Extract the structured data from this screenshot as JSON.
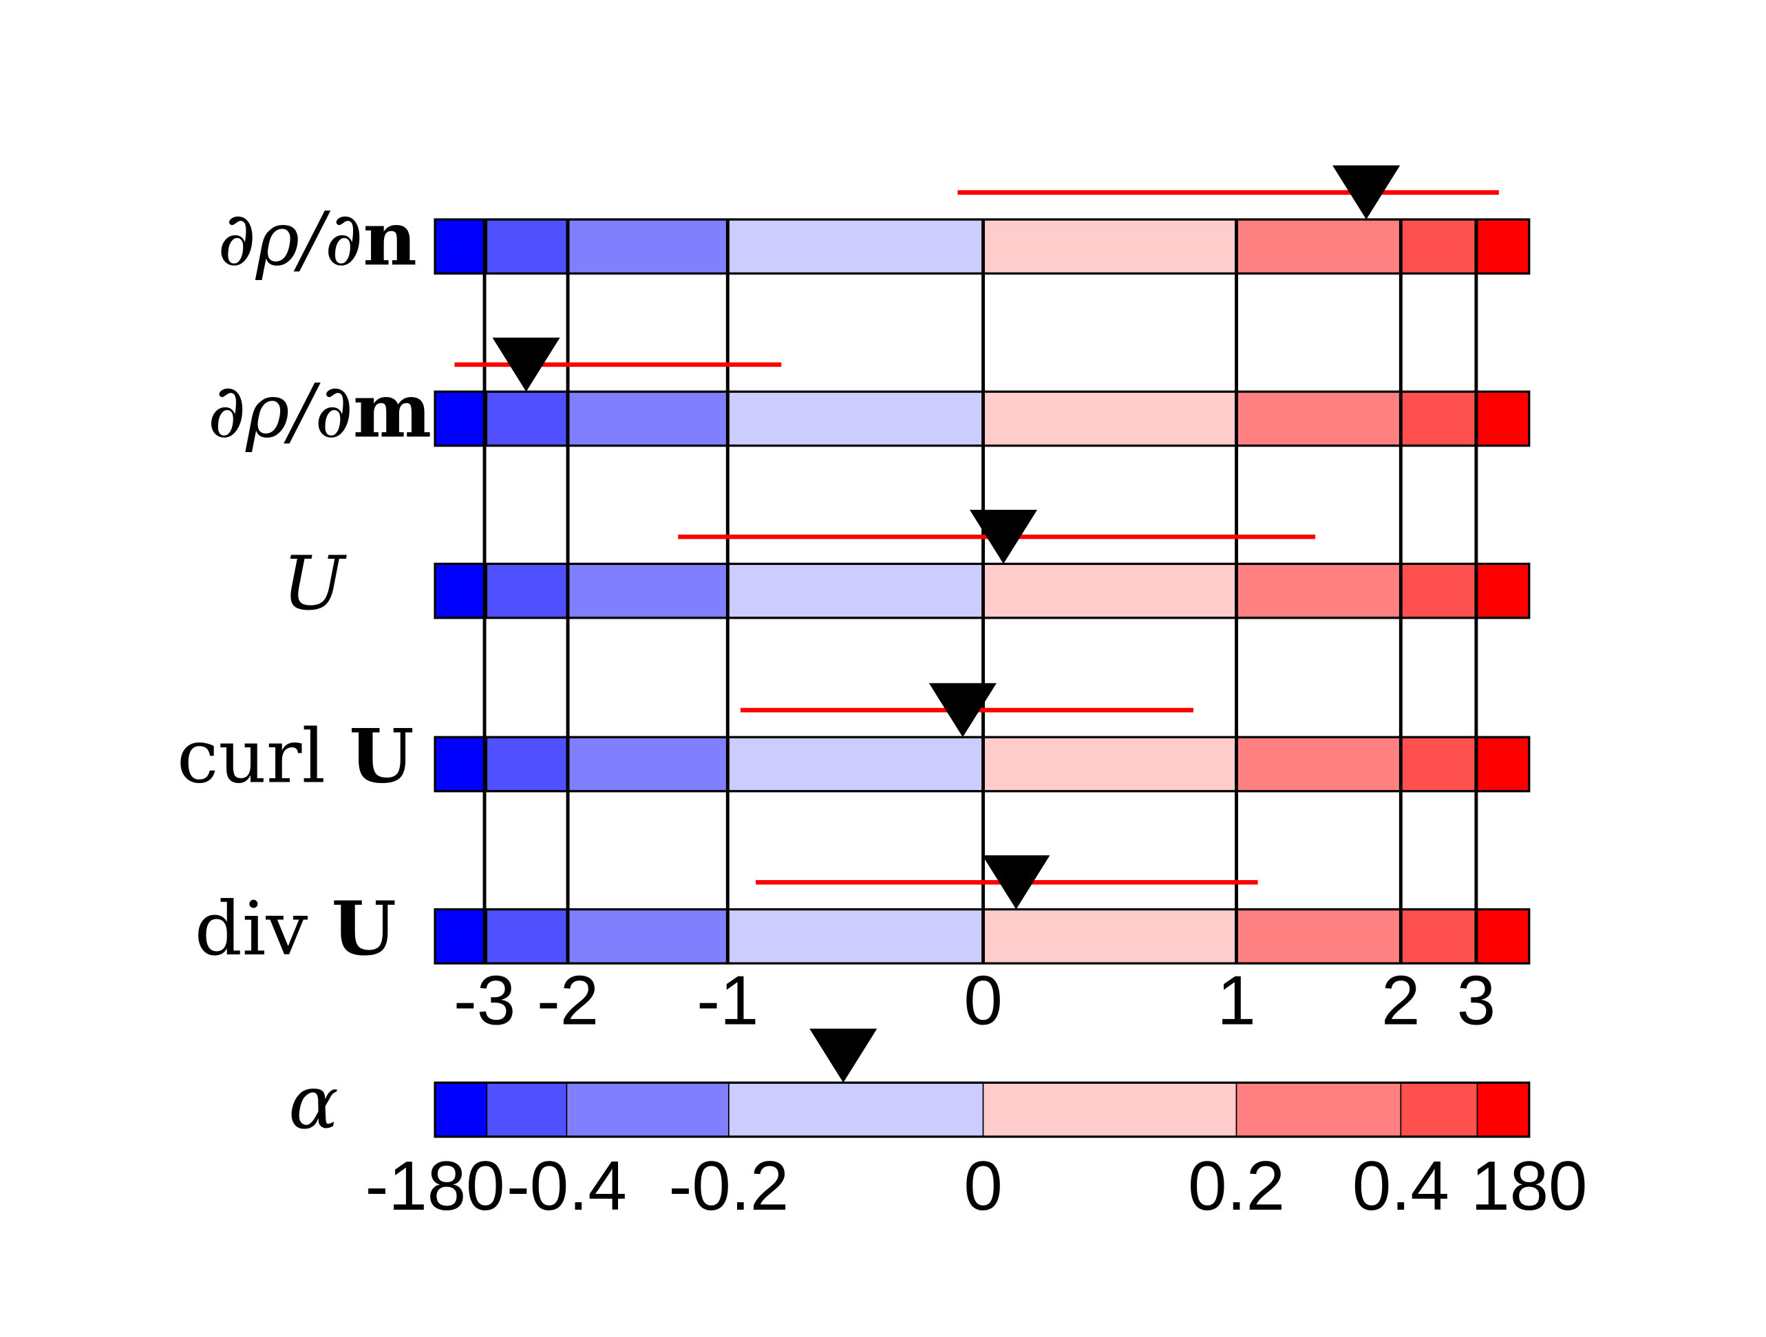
{
  "chart_data": {
    "type": "interval-markers-on-colorbars",
    "rows": [
      {
        "label_prefix": "∂ρ/∂",
        "label_bold": "n",
        "italic_prefix": true,
        "marker": 1.79,
        "range": [
          -0.1,
          3.3
        ]
      },
      {
        "label_prefix": "∂ρ/∂",
        "label_bold": "m",
        "italic_prefix": true,
        "marker": -2.5,
        "range": [
          -3.36,
          -0.79
        ]
      },
      {
        "label_prefix": "U",
        "label_bold": "",
        "italic_prefix": true,
        "marker": 0.08,
        "range": [
          -1.31,
          1.48
        ]
      },
      {
        "label_prefix": "curl ",
        "label_bold": "U",
        "italic_prefix": false,
        "marker": -0.08,
        "range": [
          -0.95,
          0.83
        ]
      },
      {
        "label_prefix": "div ",
        "label_bold": "U",
        "italic_prefix": false,
        "marker": 0.13,
        "range": [
          -0.89,
          1.13
        ]
      }
    ],
    "x_ticks": [
      -3,
      -2,
      -1,
      0,
      1,
      2,
      3
    ],
    "x_tick_labels": [
      "-3",
      "-2",
      "-1",
      "0",
      "1",
      "2",
      "3"
    ],
    "alpha": {
      "label": "α",
      "marker": -0.11,
      "ticks": [
        -180,
        -0.4,
        -0.2,
        0,
        0.2,
        0.4,
        180
      ],
      "tick_labels": [
        "-180",
        "-0.4",
        "-0.2",
        "0",
        "0.2",
        "0.4",
        "180"
      ]
    },
    "colorbar_colors": [
      "#0000ff",
      "#5050ff",
      "#8080ff",
      "#ccccff",
      "#ffcccc",
      "#ff8080",
      "#ff5050",
      "#ff0000"
    ],
    "range_color": "#ff0000",
    "marker_color": "#000000",
    "grid": "vertical lines at x ticks"
  }
}
